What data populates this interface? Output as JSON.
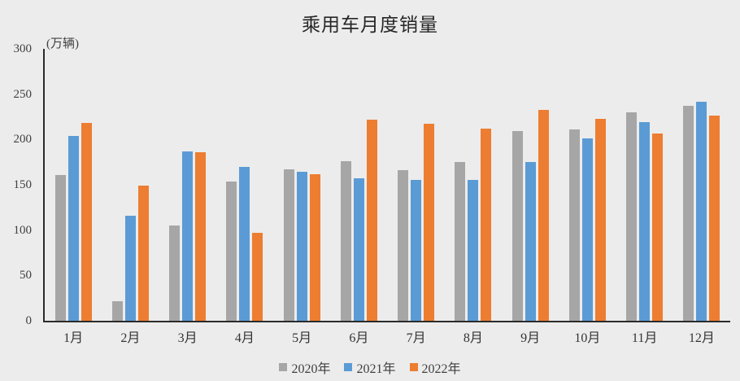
{
  "chart_data": {
    "type": "bar",
    "title": "乘用车月度销量",
    "unit_label": "(万辆)",
    "categories": [
      "1月",
      "2月",
      "3月",
      "4月",
      "5月",
      "6月",
      "7月",
      "8月",
      "9月",
      "10月",
      "11月",
      "12月"
    ],
    "series": [
      {
        "name": "2020年",
        "color": "#A6A6A6",
        "values": [
          161,
          22,
          105,
          154,
          167,
          176,
          166,
          175,
          209,
          211,
          230,
          237
        ]
      },
      {
        "name": "2021年",
        "color": "#5B9BD5",
        "values": [
          204,
          116,
          187,
          170,
          164,
          157,
          155,
          155,
          175,
          201,
          219,
          242
        ]
      },
      {
        "name": "2022年",
        "color": "#ED7D31",
        "values": [
          218,
          149,
          186,
          97,
          162,
          222,
          217,
          212,
          233,
          223,
          207,
          226
        ]
      }
    ],
    "ylabel": "",
    "xlabel": "",
    "ylim": [
      0,
      300
    ],
    "yticks": [
      0,
      50,
      100,
      150,
      200,
      250,
      300
    ],
    "grid": "off",
    "legend_position": "bottom"
  },
  "colors": {
    "background": "#ECECEC",
    "axis": "#2b2b2b",
    "text": "#404040"
  }
}
